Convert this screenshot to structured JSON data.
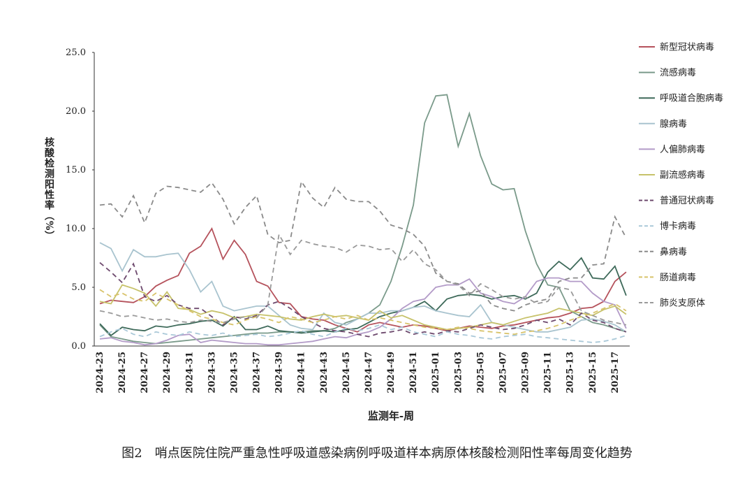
{
  "chart_data": {
    "type": "line",
    "caption": "图2　哨点医院住院严重急性呼吸道感染病例呼吸道样本病原体核酸检测阳性率每周变化趋势",
    "x_label": "监测年-周",
    "y_label": "核酸检测阳性率（%）",
    "categories": [
      "2024-23",
      null,
      "2024-25",
      null,
      "2024-27",
      null,
      "2024-29",
      null,
      "2024-31",
      null,
      "2024-33",
      null,
      "2024-35",
      null,
      "2024-37",
      null,
      "2024-39",
      null,
      "2024-41",
      null,
      "2024-43",
      null,
      "2024-45",
      null,
      "2024-47",
      null,
      "2024-49",
      null,
      "2024-51",
      null,
      "2025-01",
      null,
      "2025-03",
      null,
      "2025-05",
      null,
      "2025-07",
      null,
      "2025-09",
      null,
      "2025-11",
      null,
      "2025-13",
      null,
      "2025-15",
      null,
      "2025-17",
      null
    ],
    "ylim": [
      0,
      25
    ],
    "yticks": [
      {
        "value": 0,
        "label": "0.0"
      },
      {
        "value": 5,
        "label": "5.0"
      },
      {
        "value": 10,
        "label": "10.0"
      },
      {
        "value": 15,
        "label": "15.0"
      },
      {
        "value": 20,
        "label": "20.0"
      },
      {
        "value": 25,
        "label": "25.0"
      }
    ],
    "legend": "right",
    "series": [
      {
        "name": "新型冠状病毒",
        "color": "#b5525c",
        "dashed": false,
        "values": [
          3.6,
          3.9,
          3.8,
          3.7,
          4.2,
          5.1,
          5.6,
          6,
          7.9,
          8.5,
          10,
          7.4,
          9,
          7.8,
          5.5,
          5.1,
          3.7,
          3.6,
          2.5,
          2.3,
          2.2,
          1.8,
          1.5,
          1.2,
          1.8,
          2,
          1.8,
          1.6,
          1.8,
          1.7,
          1.5,
          1.3,
          1.5,
          1.7,
          1.6,
          1.5,
          1.7,
          1.8,
          2,
          2.2,
          2.4,
          2.5,
          2.8,
          3.2,
          3.3,
          3.8,
          5.5,
          6.3
        ]
      },
      {
        "name": "流感病毒",
        "color": "#7a9a8a",
        "dashed": false,
        "values": [
          1.8,
          0.8,
          0.6,
          0.4,
          0.3,
          0.2,
          0.3,
          0.4,
          0.5,
          0.6,
          0.7,
          0.8,
          0.9,
          1,
          1.1,
          1.1,
          1.2,
          1.2,
          1.2,
          1.3,
          1.3,
          1.5,
          2,
          2.3,
          2.8,
          3.5,
          5.5,
          8.5,
          12,
          19,
          21.3,
          21.4,
          17,
          19.8,
          16.2,
          13.8,
          13.3,
          13.4,
          9.8,
          7,
          5.2,
          5,
          3,
          2.5,
          2,
          1.8,
          1.5,
          1.2
        ]
      },
      {
        "name": "呼吸道合胞病毒",
        "color": "#3e6a5a",
        "dashed": false,
        "values": [
          1.9,
          0.9,
          1.6,
          1.4,
          1.3,
          1.7,
          1.6,
          1.8,
          1.9,
          2.1,
          2.2,
          1.7,
          2.5,
          1.4,
          1.4,
          1.7,
          1.3,
          1.2,
          1.1,
          1.2,
          1.3,
          1.2,
          1.4,
          1.5,
          2,
          2.5,
          2.8,
          3,
          3.3,
          3.8,
          3,
          4,
          4.3,
          4.4,
          4.3,
          4,
          4.2,
          4.3,
          4,
          4.5,
          6.3,
          7.2,
          6.5,
          7.5,
          5.8,
          5.7,
          6.8,
          4.3
        ]
      },
      {
        "name": "腺病毒",
        "color": "#a9c4cf",
        "dashed": false,
        "values": [
          8.8,
          8.3,
          6.4,
          8.2,
          7.6,
          7.6,
          7.8,
          7.9,
          6.5,
          4.6,
          5.5,
          3.4,
          3,
          3.2,
          3.4,
          3.4,
          2.6,
          1.8,
          1.5,
          1.4,
          2.8,
          2,
          1.8,
          2.3,
          2.8,
          2.8,
          3,
          3,
          3.3,
          3.4,
          3,
          2.8,
          2.6,
          2.5,
          3.5,
          2,
          1.8,
          1.6,
          1.4,
          1.2,
          1.2,
          1.4,
          1.6,
          2.2,
          2.3,
          2.1,
          1.8,
          1.2
        ]
      },
      {
        "name": "人偏肺病毒",
        "color": "#b39bc8",
        "dashed": false,
        "values": [
          0.6,
          0.7,
          0.4,
          0.3,
          0.1,
          0.2,
          0.5,
          0.9,
          1,
          0.3,
          0.5,
          0.4,
          0.3,
          0.2,
          0.2,
          0.1,
          0.1,
          0.2,
          0.3,
          0.4,
          0.6,
          0.8,
          0.7,
          1,
          1.2,
          1.6,
          2.3,
          3.2,
          3.8,
          4,
          5,
          5.2,
          5.2,
          5.7,
          4.5,
          4.2,
          3.8,
          3.6,
          4.2,
          5.5,
          5.8,
          5.8,
          5.5,
          5.5,
          4.5,
          3.8,
          3.5,
          1.5
        ]
      },
      {
        "name": "副流感病毒",
        "color": "#c7c26a",
        "dashed": false,
        "values": [
          3.8,
          3.6,
          5.2,
          4.9,
          4.5,
          3.4,
          4.6,
          3.2,
          3.1,
          2.7,
          3,
          2.8,
          2.4,
          2.5,
          2.7,
          2.6,
          2.5,
          2.3,
          2.2,
          2.5,
          2.7,
          2.5,
          2.6,
          2.4,
          2.2,
          3,
          2.4,
          2.6,
          2.2,
          1.8,
          1.6,
          1.4,
          1.5,
          1.6,
          1.8,
          2,
          1.8,
          2.1,
          2.4,
          2.6,
          2.8,
          3.2,
          3,
          2.8,
          2.6,
          3.1,
          3.4,
          2.7
        ]
      },
      {
        "name": "普通冠状病毒",
        "color": "#6e4a6e",
        "dashed": true,
        "values": [
          7.1,
          6.3,
          5.4,
          7,
          4.2,
          3.8,
          4.3,
          3.5,
          3.2,
          3.2,
          2.5,
          1.8,
          2.5,
          2.3,
          2.6,
          3.5,
          3.8,
          3.2,
          2.5,
          2,
          1.5,
          1.3,
          1.2,
          1,
          0.8,
          1.1,
          1.2,
          1.4,
          1,
          1.2,
          1,
          1.3,
          1.2,
          1.5,
          1.8,
          1.6,
          1.4,
          1.5,
          1.8,
          2.2,
          2,
          2.3,
          1.8,
          2.8,
          2.2,
          2,
          1.5,
          1.2
        ]
      },
      {
        "name": "博卡病毒",
        "color": "#a9c8d8",
        "dashed": true,
        "values": [
          0.8,
          1.2,
          1.5,
          1,
          0.8,
          1.2,
          1,
          0.9,
          1.2,
          1,
          0.9,
          1.1,
          0.8,
          0.9,
          1,
          0.8,
          0.9,
          1.1,
          1.3,
          1,
          0.8,
          1.2,
          1.5,
          1.3,
          1.5,
          1.8,
          1.4,
          1.6,
          1.2,
          1,
          0.8,
          1.2,
          1,
          0.9,
          0.7,
          0.6,
          0.8,
          0.9,
          1,
          0.8,
          0.7,
          0.6,
          0.5,
          0.4,
          0.3,
          0.4,
          0.6,
          0.9
        ]
      },
      {
        "name": "鼻病毒",
        "color": "#8a8a8a",
        "dashed": true,
        "values": [
          12,
          12.1,
          11,
          12.8,
          10.5,
          13,
          13.6,
          13.5,
          13.3,
          13.1,
          13.9,
          12.5,
          10.4,
          11.8,
          12.8,
          9.5,
          8.8,
          9,
          14,
          12.6,
          11.8,
          13.5,
          12.5,
          12.3,
          12.3,
          11.5,
          10.3,
          10,
          9.5,
          8.5,
          6.2,
          5.5,
          5.3,
          4.5,
          4.7,
          3.5,
          3.2,
          3,
          3.5,
          3.8,
          4,
          5.5,
          5.8,
          5.8,
          6.9,
          7,
          11,
          9.2
        ]
      },
      {
        "name": "肠道病毒",
        "color": "#d8c36a",
        "dashed": true,
        "values": [
          4.8,
          4.2,
          4.5,
          4,
          3.8,
          4.5,
          4,
          3.5,
          3,
          2.5,
          2.3,
          2,
          1.8,
          2.2,
          2.5,
          2.3,
          2,
          2.5,
          2.3,
          2,
          2.2,
          2.5,
          2.3,
          2.6,
          2.2,
          2.4,
          2.2,
          2,
          1.8,
          1.6,
          1.5,
          1.4,
          1.6,
          1.5,
          1.3,
          1.2,
          1.1,
          1,
          1.2,
          1.3,
          1.5,
          1.8,
          2.2,
          2.5,
          2.8,
          3.2,
          3.6,
          3
        ]
      },
      {
        "name": "肺炎支原体",
        "color": "#9a9a9a",
        "dashed": true,
        "values": [
          3,
          2.8,
          2.5,
          2.6,
          2.4,
          2.2,
          2.3,
          2.1,
          2,
          2.2,
          2.1,
          2,
          2.3,
          2.5,
          2.4,
          3.5,
          9.5,
          7.8,
          9,
          8.7,
          8.5,
          8.4,
          8,
          8.6,
          8.5,
          8.2,
          8.3,
          7.2,
          8.2,
          7,
          6.5,
          5.5,
          5.2,
          4.3,
          5.3,
          4.8,
          4.2,
          4,
          4.2,
          3.6,
          3.8,
          5,
          4.8,
          3,
          2.6,
          2.2,
          2,
          1.8
        ]
      }
    ]
  }
}
